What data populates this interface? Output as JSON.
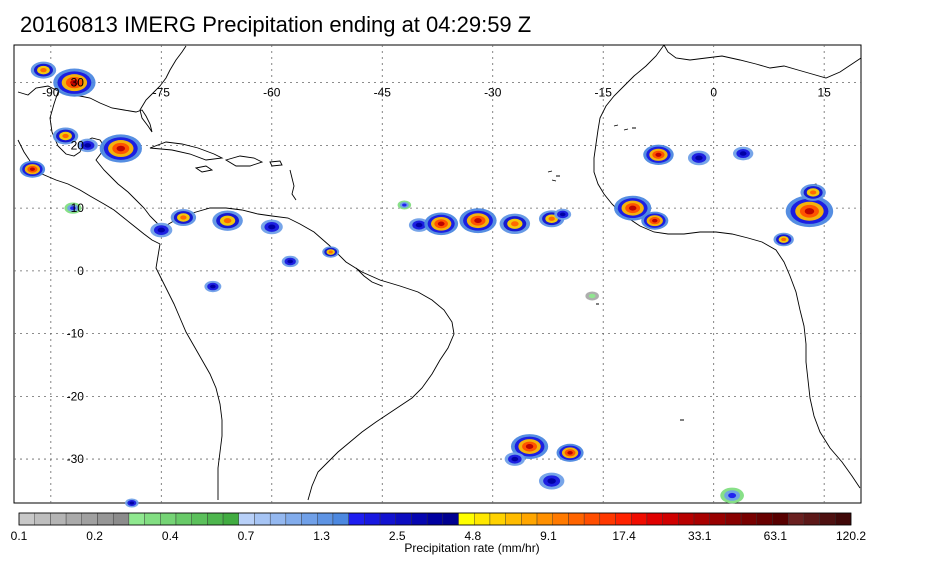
{
  "title": "20160813 IMERG Precipitation ending at 04:29:59 Z",
  "map": {
    "lon_range": [
      -95,
      20
    ],
    "lat_range": [
      -37,
      36
    ],
    "lon_ticks": [
      {
        "value": -90,
        "label": "-90"
      },
      {
        "value": -75,
        "label": "-75"
      },
      {
        "value": -60,
        "label": "-60"
      },
      {
        "value": -45,
        "label": "-45"
      },
      {
        "value": -30,
        "label": "-30"
      },
      {
        "value": -15,
        "label": "-15"
      },
      {
        "value": 0,
        "label": "0"
      },
      {
        "value": 15,
        "label": "15"
      }
    ],
    "lat_ticks": [
      {
        "value": 30,
        "label": "30"
      },
      {
        "value": 20,
        "label": "20"
      },
      {
        "value": 10,
        "label": "10"
      },
      {
        "value": 0,
        "label": "0"
      },
      {
        "value": -10,
        "label": "-10"
      },
      {
        "value": -20,
        "label": "-20"
      },
      {
        "value": -30,
        "label": "-30"
      }
    ],
    "grid": "dotted",
    "coastline_color": "#000000"
  },
  "colorbar": {
    "label": "Precipitation rate (mm/hr)",
    "tick_labels": [
      "0.1",
      "0.2",
      "0.4",
      "0.7",
      "1.3",
      "2.5",
      "4.8",
      "9.1",
      "17.4",
      "33.1",
      "63.1",
      "120.2"
    ],
    "colors": [
      "#c8c8c8",
      "#bebebe",
      "#b4b4b4",
      "#aaaaaa",
      "#a0a0a0",
      "#969696",
      "#8c8c8c",
      "#8fe88f",
      "#82de82",
      "#75d475",
      "#68ca68",
      "#5bc05b",
      "#4eb64e",
      "#41ac41",
      "#b8d0f8",
      "#a6c4f4",
      "#94b8f0",
      "#82acec",
      "#70a0e8",
      "#5e94e4",
      "#4c88e0",
      "#1e1ef0",
      "#1818e0",
      "#1212d0",
      "#0c0cc0",
      "#0606b0",
      "#0000a0",
      "#000090",
      "#ffff00",
      "#ffe800",
      "#ffd200",
      "#ffbc00",
      "#ffa600",
      "#ff9000",
      "#ff7a00",
      "#ff6400",
      "#ff4e00",
      "#ff3800",
      "#ff2200",
      "#f00c00",
      "#e00000",
      "#d00000",
      "#b80000",
      "#a80000",
      "#980000",
      "#880000",
      "#780000",
      "#680000",
      "#580000",
      "#6a2020",
      "#5c1818",
      "#4e1010",
      "#400808"
    ]
  },
  "precip_cells": [
    {
      "lon": -86.8,
      "lat": 30.0,
      "r": 2.5,
      "level": 4
    },
    {
      "lon": -91.0,
      "lat": 32.0,
      "r": 1.5,
      "level": 3
    },
    {
      "lon": -88.0,
      "lat": 21.5,
      "r": 1.5,
      "level": 3
    },
    {
      "lon": -80.5,
      "lat": 19.5,
      "r": 2.5,
      "level": 4
    },
    {
      "lon": -92.5,
      "lat": 16.2,
      "r": 1.5,
      "level": 4
    },
    {
      "lon": -85.0,
      "lat": 20.0,
      "r": 1.2,
      "level": 2
    },
    {
      "lon": -66.0,
      "lat": 8.0,
      "r": 1.8,
      "level": 3
    },
    {
      "lon": -72.0,
      "lat": 8.5,
      "r": 1.5,
      "level": 3
    },
    {
      "lon": -75.0,
      "lat": 6.5,
      "r": 1.3,
      "level": 2
    },
    {
      "lon": -60.0,
      "lat": 7.0,
      "r": 1.3,
      "level": 2
    },
    {
      "lon": -52.0,
      "lat": 3.0,
      "r": 1.0,
      "level": 3
    },
    {
      "lon": -57.5,
      "lat": 1.5,
      "r": 1.0,
      "level": 2
    },
    {
      "lon": -40.0,
      "lat": 7.3,
      "r": 1.2,
      "level": 2
    },
    {
      "lon": -37.0,
      "lat": 7.5,
      "r": 2.0,
      "level": 4
    },
    {
      "lon": -32.0,
      "lat": 8.0,
      "r": 2.2,
      "level": 4
    },
    {
      "lon": -27.0,
      "lat": 7.5,
      "r": 1.8,
      "level": 3
    },
    {
      "lon": -22.0,
      "lat": 8.3,
      "r": 1.5,
      "level": 3
    },
    {
      "lon": -20.5,
      "lat": 9.0,
      "r": 1.0,
      "level": 2
    },
    {
      "lon": -11.0,
      "lat": 10.0,
      "r": 2.2,
      "level": 4
    },
    {
      "lon": -8.0,
      "lat": 8.0,
      "r": 1.6,
      "level": 4
    },
    {
      "lon": -7.5,
      "lat": 18.5,
      "r": 1.8,
      "level": 4
    },
    {
      "lon": -2.0,
      "lat": 18.0,
      "r": 1.3,
      "level": 2
    },
    {
      "lon": 4.0,
      "lat": 18.7,
      "r": 1.2,
      "level": 2
    },
    {
      "lon": 13.0,
      "lat": 9.5,
      "r": 2.8,
      "level": 4
    },
    {
      "lon": 13.5,
      "lat": 12.5,
      "r": 1.5,
      "level": 3
    },
    {
      "lon": 9.5,
      "lat": 5.0,
      "r": 1.2,
      "level": 3
    },
    {
      "lon": -25.0,
      "lat": -28.0,
      "r": 2.2,
      "level": 4
    },
    {
      "lon": -19.5,
      "lat": -29.0,
      "r": 1.6,
      "level": 4
    },
    {
      "lon": -27.0,
      "lat": -30.0,
      "r": 1.2,
      "level": 2
    },
    {
      "lon": -22.0,
      "lat": -33.5,
      "r": 1.5,
      "level": 2
    },
    {
      "lon": 2.5,
      "lat": -35.8,
      "r": 1.4,
      "level": 1
    },
    {
      "lon": -87.0,
      "lat": 10.0,
      "r": 1.0,
      "level": 1
    },
    {
      "lon": -68.0,
      "lat": -2.5,
      "r": 1.0,
      "level": 2
    },
    {
      "lon": -42.0,
      "lat": 10.5,
      "r": 0.8,
      "level": 1
    },
    {
      "lon": -16.5,
      "lat": -4.0,
      "r": 0.8,
      "level": 0
    },
    {
      "lon": -79.0,
      "lat": -37.0,
      "r": 0.8,
      "level": 2
    }
  ]
}
